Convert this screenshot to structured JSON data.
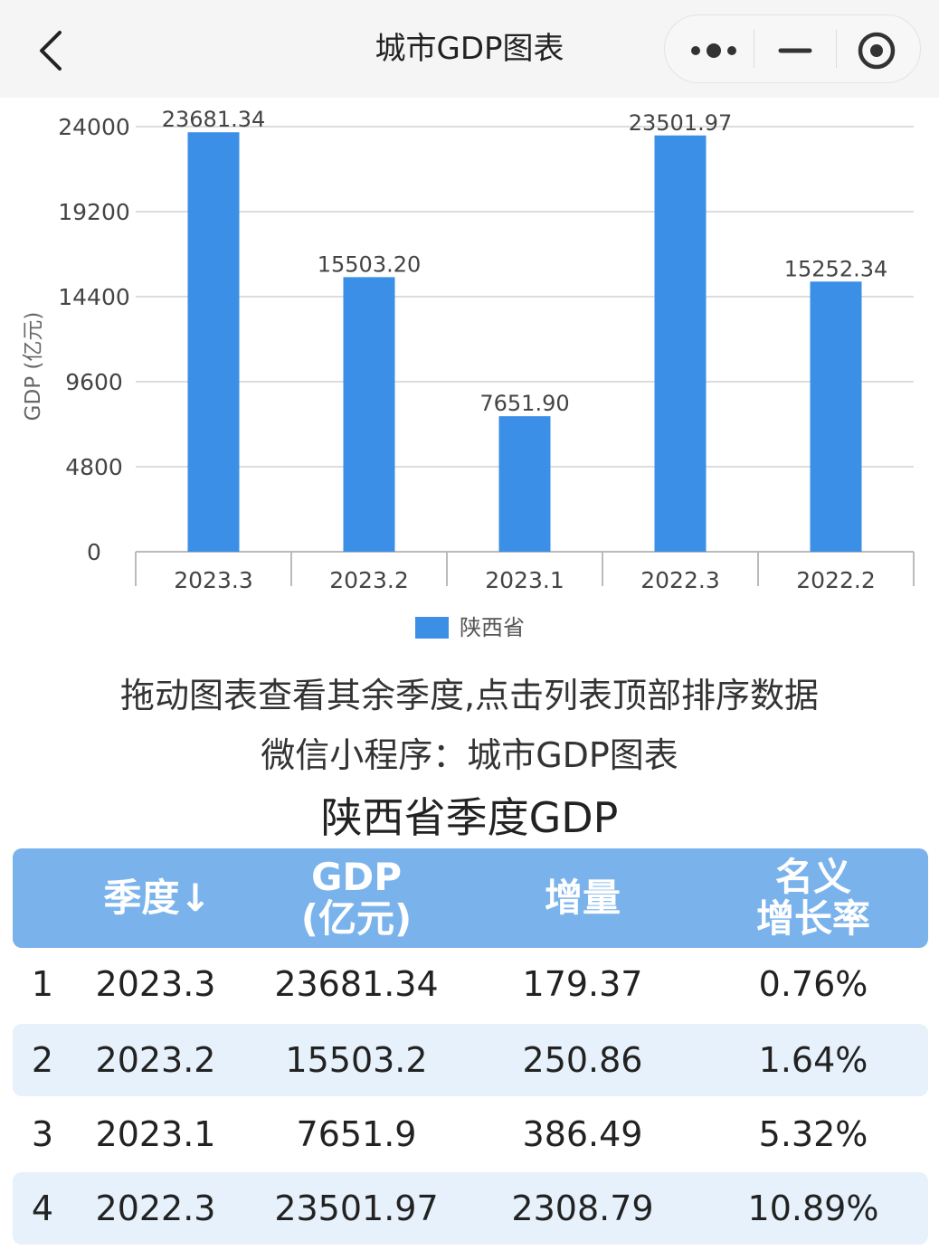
{
  "nav": {
    "title": "城市GDP图表"
  },
  "chart_data": {
    "type": "bar",
    "categories": [
      "2023.3",
      "2023.2",
      "2023.1",
      "2022.3",
      "2022.2"
    ],
    "series": [
      {
        "name": "陕西省",
        "values": [
          23681.34,
          15503.2,
          7651.9,
          23501.97,
          15252.34
        ]
      }
    ],
    "value_labels": [
      "23681.34",
      "15503.20",
      "7651.90",
      "23501.97",
      "15252.34"
    ],
    "ylabel": "GDP (亿元)",
    "yticks": [
      "0",
      "4800",
      "9600",
      "14400",
      "19200",
      "24000"
    ],
    "ylim": [
      0,
      24000
    ],
    "grid": true,
    "legend": "bottom-center",
    "bar_color": "#3b8fe6"
  },
  "captions": {
    "hint": "拖动图表查看其余季度,点击列表顶部排序数据",
    "miniprogram": "微信小程序：城市GDP图表"
  },
  "table": {
    "title": "陕西省季度GDP",
    "headers": {
      "quarter": "季度↓",
      "gdp_1": "GDP",
      "gdp_2": "(亿元)",
      "increment": "增量",
      "rate_1": "名义",
      "rate_2": "增长率"
    },
    "rows": [
      {
        "rank": "1",
        "quarter": "2023.3",
        "gdp": "23681.34",
        "increment": "179.37",
        "rate": "0.76%"
      },
      {
        "rank": "2",
        "quarter": "2023.2",
        "gdp": "15503.2",
        "increment": "250.86",
        "rate": "1.64%"
      },
      {
        "rank": "3",
        "quarter": "2023.1",
        "gdp": "7651.9",
        "increment": "386.49",
        "rate": "5.32%"
      },
      {
        "rank": "4",
        "quarter": "2022.3",
        "gdp": "23501.97",
        "increment": "2308.79",
        "rate": "10.89%"
      }
    ]
  },
  "colors": {
    "header_bg": "#7ab3ec",
    "row_alt_bg": "#e6f1fb",
    "navbar_bg": "#f5f5f5"
  }
}
